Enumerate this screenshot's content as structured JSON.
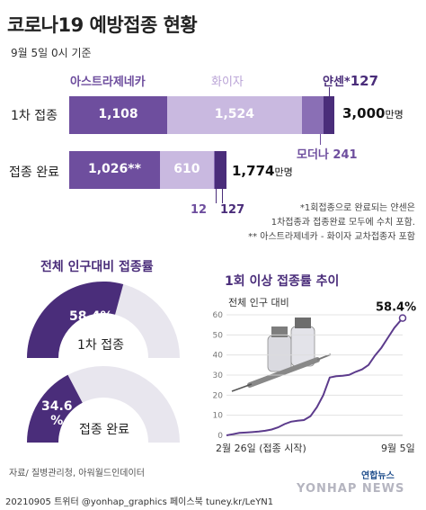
{
  "header": {
    "title": "코로나19 예방접종 현황",
    "date": "9월 5일 0시 기준"
  },
  "vaccine_labels": {
    "astrazeneca": "아스트라제네카",
    "pfizer": "화이자",
    "janssen": "얀센*",
    "janssen_value": "127",
    "moderna": "모더나 241"
  },
  "rows": {
    "first_label": "1차 접종",
    "complete_label": "접종 완료",
    "first_total": "3,000",
    "complete_total": "1,774",
    "unit": "만명",
    "moderna_complete": "12",
    "janssen_complete": "127"
  },
  "notes": {
    "n1": "*1회접종으로 완료되는 얀센은",
    "n2": "1차접종과 접종완료 모두에 수치 포함.",
    "n3": "** 아스트라제네카 - 화이자 교차접종자 포함"
  },
  "gauges": {
    "title": "전체 인구대비 접종률",
    "first_value": "58.4%",
    "first_label": "1차 접종",
    "complete_value_num": "34.6",
    "complete_value_pct": "%",
    "complete_label": "접종 완료"
  },
  "line": {
    "title": "1회 이상 접종률 추이",
    "ylabel": "전체 인구 대비",
    "end_label": "58.4%",
    "start_date": "2월 26일 (접종 시작)",
    "end_date": "9월 5일"
  },
  "footer": {
    "source": "자료/ 질병관리청, 아워월드인데이터",
    "credit": "20210905 트위터 @yonhap_graphics 페이스북 tuney.kr/LeYN1",
    "logo_text": "연합뉴스",
    "watermark": "YONHAP NEWS"
  },
  "colors": {
    "purple_dark": "#6e4e9e",
    "purple_light": "#c9b9e0",
    "purple_deep": "#4a2d7a",
    "gray_bg": "#e8e6ee"
  },
  "chart_data": [
    {
      "type": "bar",
      "title": "",
      "categories": [
        "1차 접종",
        "접종 완료"
      ],
      "series": [
        {
          "name": "아스트라제네카",
          "values": [
            1108,
            1026
          ]
        },
        {
          "name": "화이자",
          "values": [
            1524,
            610
          ]
        },
        {
          "name": "모더나",
          "values": [
            241,
            12
          ]
        },
        {
          "name": "얀센",
          "values": [
            127,
            127
          ]
        }
      ],
      "totals": [
        3000,
        1774
      ],
      "unit": "만명",
      "stacked": true,
      "orientation": "horizontal"
    },
    {
      "type": "pie",
      "title": "전체 인구대비 접종률",
      "categories": [
        "1차 접종",
        "접종 완료"
      ],
      "values": [
        58.4,
        34.6
      ]
    },
    {
      "type": "line",
      "title": "1회 이상 접종률 추이",
      "ylabel": "전체 인구 대비",
      "ylim": [
        0,
        60
      ],
      "yticks": [
        0,
        10,
        20,
        30,
        40,
        50,
        60
      ],
      "x": [
        "2021-02-26",
        "2021-03-05",
        "2021-03-12",
        "2021-03-19",
        "2021-03-26",
        "2021-04-02",
        "2021-04-09",
        "2021-04-16",
        "2021-04-23",
        "2021-04-30",
        "2021-05-07",
        "2021-05-14",
        "2021-05-21",
        "2021-05-28",
        "2021-06-04",
        "2021-06-11",
        "2021-06-18",
        "2021-06-25",
        "2021-07-02",
        "2021-07-09",
        "2021-07-16",
        "2021-07-23",
        "2021-07-30",
        "2021-08-06",
        "2021-08-13",
        "2021-08-20",
        "2021-08-27",
        "2021-09-05"
      ],
      "y": [
        0,
        0.6,
        1.2,
        1.4,
        1.6,
        1.9,
        2.3,
        2.9,
        4.0,
        5.6,
        6.8,
        7.3,
        7.6,
        9.5,
        14.0,
        20.0,
        28.8,
        29.4,
        29.7,
        30.1,
        31.6,
        32.8,
        35.0,
        39.7,
        43.6,
        48.6,
        53.5,
        58.4
      ],
      "grid": true
    }
  ]
}
